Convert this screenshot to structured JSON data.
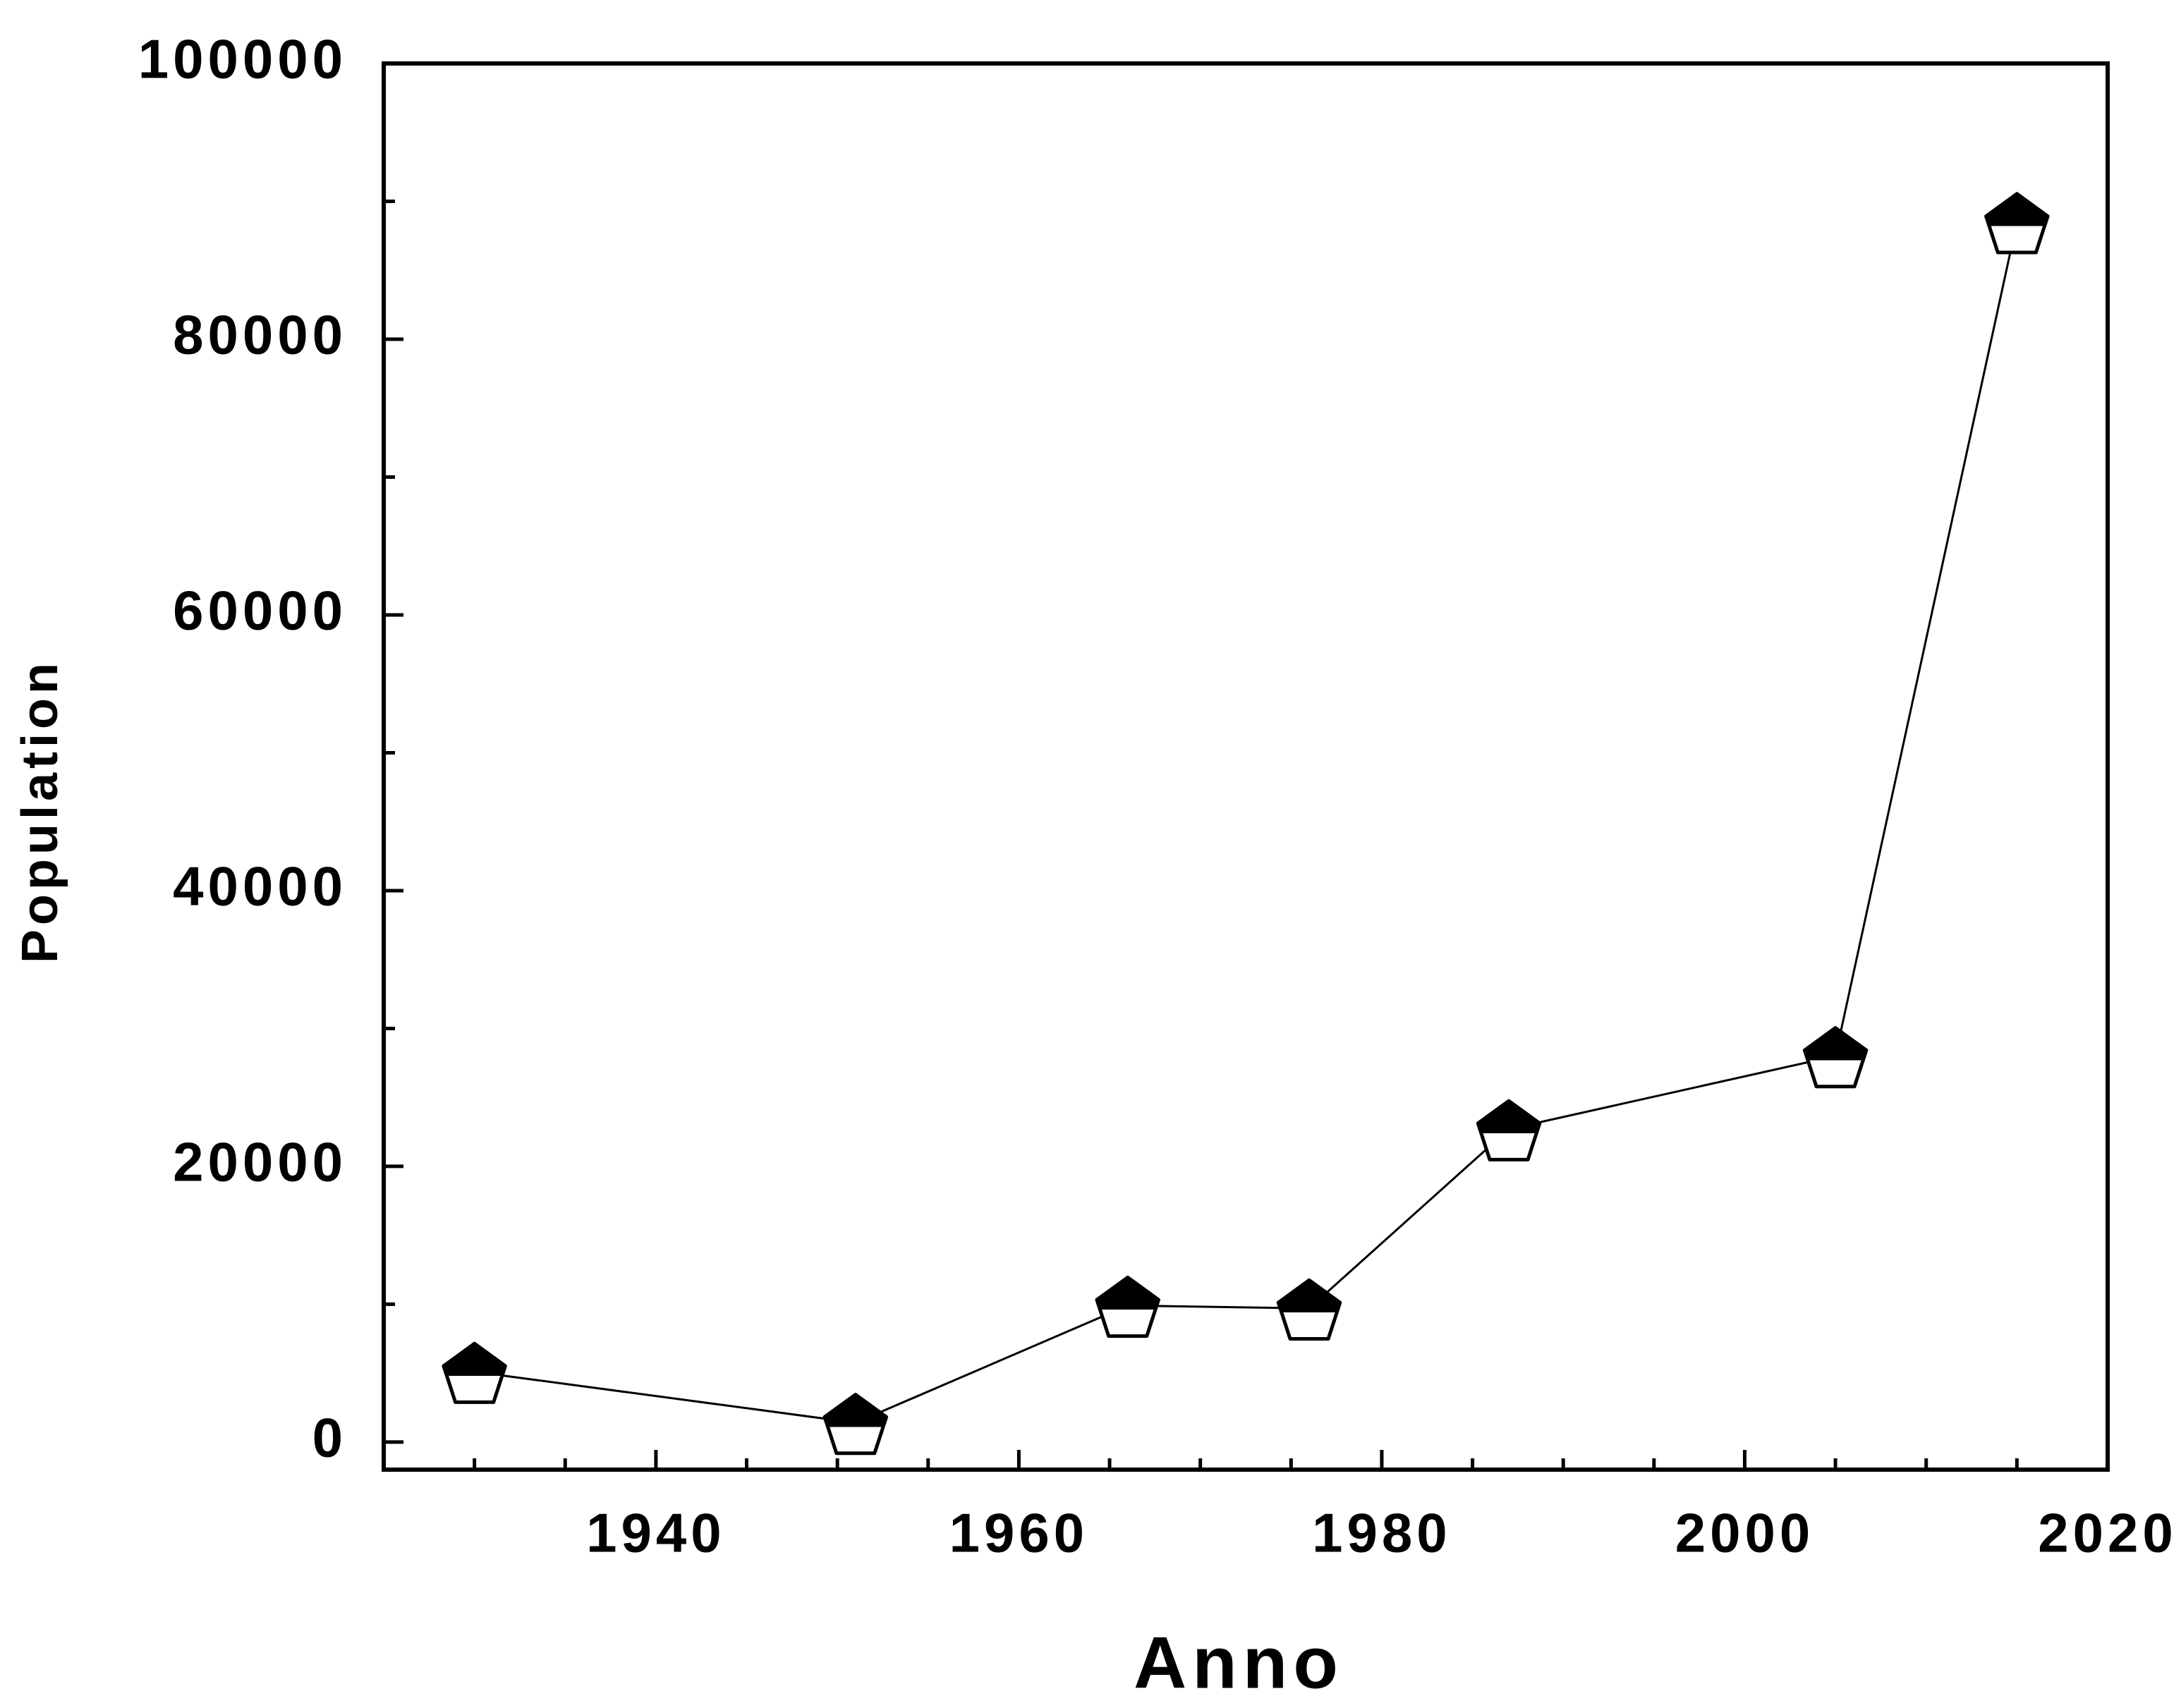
{
  "chart_data": {
    "type": "line",
    "x_label": "Anno",
    "y_label": "Population",
    "x": [
      1930,
      1951,
      1966,
      1976,
      1987,
      2005,
      2015
    ],
    "series": [
      {
        "color": "#000000",
        "values": [
          5100,
          1400,
          9900,
          9700,
          22700,
          28000,
          88500
        ]
      }
    ],
    "xlim": [
      1925,
      2020
    ],
    "xticks": [
      1940,
      1960,
      1980,
      2000,
      2020
    ],
    "ylim": [
      -2000,
      100000
    ],
    "yticks": [
      0,
      20000,
      40000,
      60000,
      80000,
      100000
    ],
    "grid": false
  }
}
